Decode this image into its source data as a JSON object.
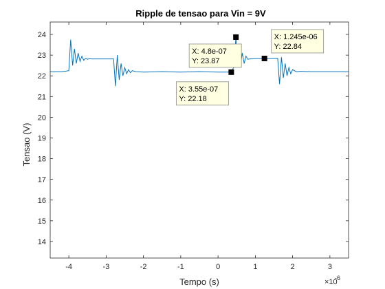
{
  "chart_data": {
    "type": "line",
    "title": "Ripple de tensao para Vin = 9V",
    "xlabel": "Tempo (s)",
    "ylabel": "Tensao (V)",
    "x_exponent_label": "×10",
    "x_exponent_power": "-6",
    "xlim": [
      -4.5,
      3.5
    ],
    "ylim": [
      13.2,
      24.6
    ],
    "x_ticks": [
      -4,
      -3,
      -2,
      -1,
      0,
      1,
      2,
      3
    ],
    "x_tick_labels": [
      "-4",
      "-3",
      "-2",
      "-1",
      "0",
      "1",
      "2",
      "3"
    ],
    "y_ticks": [
      14,
      15,
      16,
      17,
      18,
      19,
      20,
      21,
      22,
      23,
      24
    ],
    "y_tick_labels": [
      "14",
      "15",
      "16",
      "17",
      "18",
      "19",
      "20",
      "21",
      "22",
      "23",
      "24"
    ],
    "grid": false,
    "series_color": "#0072BD",
    "series": [
      {
        "x": [
          -4.5,
          -4.2,
          -4.0,
          -3.95,
          -3.9,
          -3.85,
          -3.8,
          -3.75,
          -3.7,
          -3.65,
          -3.6,
          -3.55,
          -3.5,
          -3.45,
          -3.4,
          -3.2,
          -3.0,
          -2.8,
          -2.75,
          -2.7,
          -2.65,
          -2.6,
          -2.55,
          -2.5,
          -2.45,
          -2.4,
          -2.35,
          -2.3,
          -2.2,
          -2.0,
          -1.5,
          -1.0,
          -0.5,
          0.0,
          0.2,
          0.35,
          0.42,
          0.48,
          0.52,
          0.56,
          0.6,
          0.65,
          0.7,
          0.75,
          0.8,
          0.9,
          1.0,
          1.245,
          1.5,
          1.6,
          1.65,
          1.7,
          1.75,
          1.8,
          1.85,
          1.9,
          1.95,
          2.0,
          2.1,
          2.2,
          2.5,
          3.0,
          3.5
        ],
        "y": [
          22.2,
          22.2,
          22.25,
          23.75,
          22.5,
          23.3,
          22.6,
          23.1,
          22.7,
          22.95,
          22.75,
          22.85,
          22.8,
          22.83,
          22.82,
          22.82,
          22.82,
          22.82,
          21.5,
          23.0,
          21.8,
          22.6,
          22.0,
          22.4,
          22.1,
          22.3,
          22.15,
          22.25,
          22.2,
          22.18,
          22.2,
          22.18,
          22.2,
          22.18,
          22.18,
          22.18,
          22.4,
          23.87,
          22.6,
          23.4,
          22.5,
          23.1,
          22.6,
          22.95,
          22.8,
          22.83,
          22.84,
          22.84,
          22.85,
          22.85,
          21.6,
          22.9,
          21.9,
          22.6,
          22.0,
          22.4,
          22.1,
          22.3,
          22.2,
          22.22,
          22.2,
          22.2,
          22.2
        ]
      }
    ],
    "datatips": [
      {
        "x": 4.8e-07,
        "y": 23.87,
        "x_text": "X: 4.8e-07",
        "y_text": "Y: 23.87",
        "label_dx": -68,
        "label_dy": 10
      },
      {
        "x": 3.55e-07,
        "y": 22.18,
        "x_text": "X: 3.55e-07",
        "y_text": "Y: 22.18",
        "label_dx": -80,
        "label_dy": 14
      },
      {
        "x": 1.245e-06,
        "y": 22.84,
        "x_text": "X: 1.245e-06",
        "y_text": "Y: 22.84",
        "label_dx": 10,
        "label_dy": -42
      }
    ],
    "datatip_fill": "#FFFFE1",
    "datatip_border": "#8C8C8C"
  }
}
